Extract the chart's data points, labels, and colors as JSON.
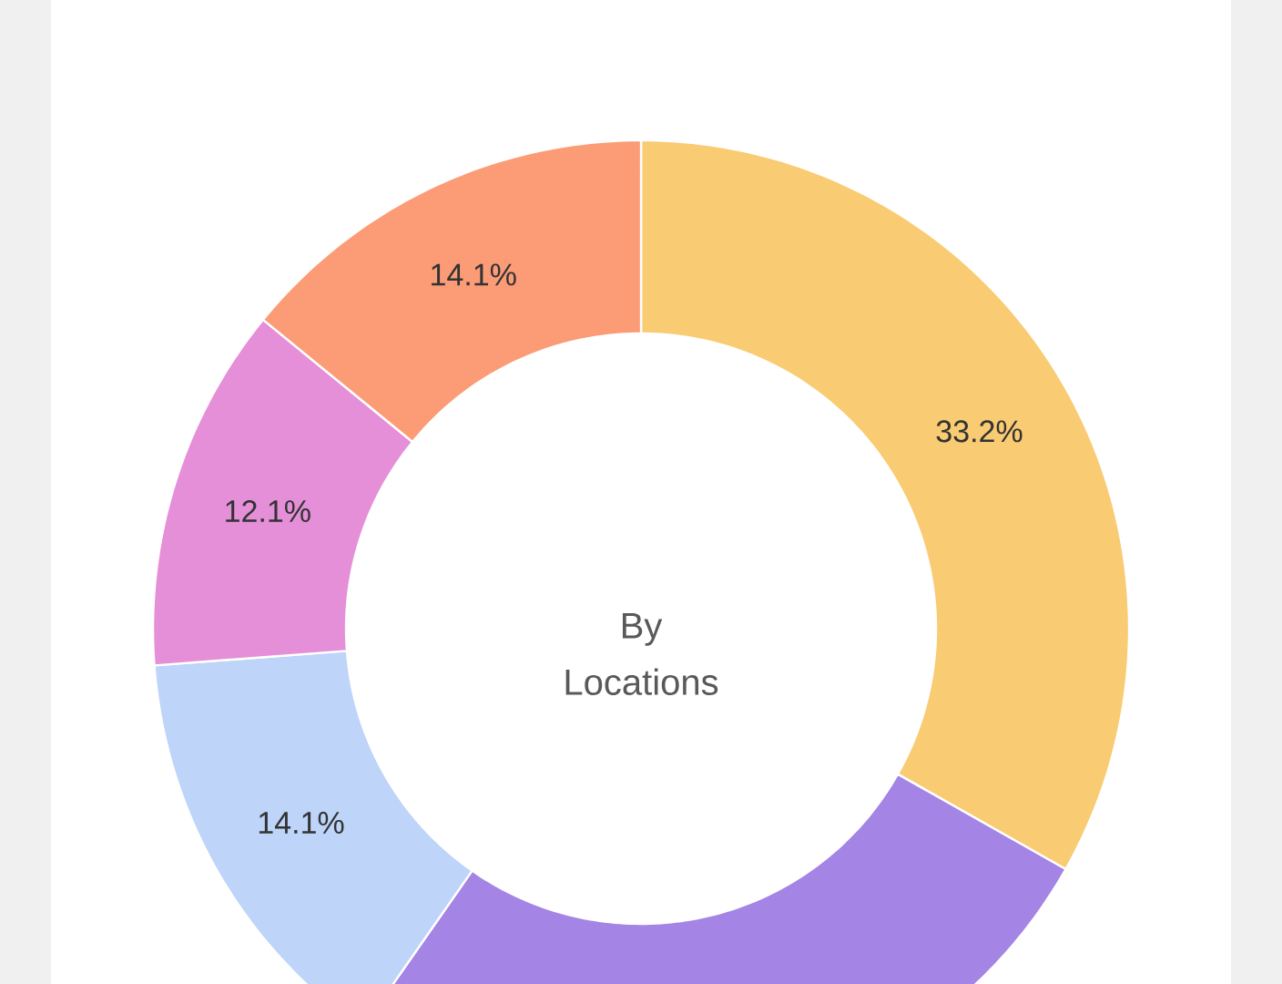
{
  "chart_data": {
    "type": "donut",
    "annotations": [
      "By Locations"
    ],
    "categories": [
      null,
      null,
      null,
      null,
      null
    ],
    "values": [
      33.2,
      26.5,
      14.1,
      12.1,
      14.1
    ],
    "value_labels": [
      "33.2%",
      null,
      "14.1%",
      "12.1%",
      "14.1%"
    ],
    "colors": [
      "#f9cb72",
      "#a484e4",
      "#bed4f8",
      "#e58fd8",
      "#fb9c77"
    ]
  }
}
